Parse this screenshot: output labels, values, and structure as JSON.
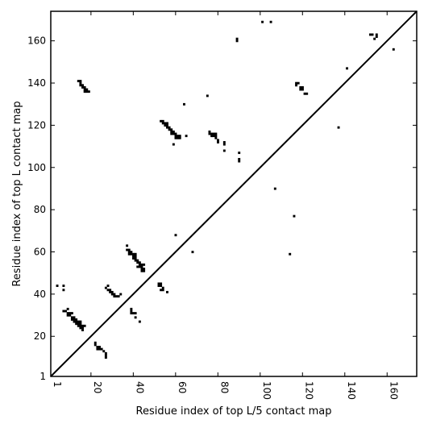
{
  "chart_data": {
    "type": "scatter",
    "xlabel": "Residue index of top L/5 contact map",
    "ylabel": "Residue index of top L contact map",
    "xlim": [
      1,
      174
    ],
    "ylim": [
      1,
      174
    ],
    "x_ticks": [
      1,
      20,
      40,
      60,
      80,
      100,
      120,
      140,
      160
    ],
    "y_ticks": [
      1,
      20,
      40,
      60,
      80,
      100,
      120,
      140,
      160
    ],
    "x_tick_labels": [
      "1",
      "20",
      "40",
      "60",
      "80",
      "100",
      "120",
      "140",
      "160"
    ],
    "y_tick_labels": [
      "1",
      "20",
      "40",
      "60",
      "80",
      "100",
      "120",
      "140",
      "160"
    ],
    "grid": false,
    "marker_color": "#000000",
    "series": [
      {
        "points": [
          [
            4,
            44
          ],
          [
            7,
            44
          ],
          [
            7,
            42
          ],
          [
            7,
            32
          ],
          [
            8,
            32
          ],
          [
            9,
            33
          ],
          [
            9,
            31
          ],
          [
            10,
            31
          ],
          [
            11,
            31
          ],
          [
            9,
            30
          ],
          [
            10,
            30
          ],
          [
            11,
            29
          ],
          [
            12,
            29
          ],
          [
            11,
            28
          ],
          [
            12,
            28
          ],
          [
            13,
            28
          ],
          [
            12,
            27
          ],
          [
            13,
            27
          ],
          [
            14,
            27
          ],
          [
            15,
            27
          ],
          [
            13,
            26
          ],
          [
            14,
            26
          ],
          [
            15,
            26
          ],
          [
            14,
            25
          ],
          [
            15,
            25
          ],
          [
            16,
            25
          ],
          [
            17,
            25
          ],
          [
            15,
            24
          ],
          [
            16,
            24
          ],
          [
            16,
            23
          ],
          [
            22,
            17
          ],
          [
            22,
            16
          ],
          [
            23,
            15
          ],
          [
            24,
            15
          ],
          [
            23,
            14
          ],
          [
            24,
            14
          ],
          [
            25,
            14
          ],
          [
            26,
            13
          ],
          [
            27,
            12
          ],
          [
            27,
            11
          ],
          [
            27,
            10
          ],
          [
            27,
            43
          ],
          [
            28,
            44
          ],
          [
            28,
            42
          ],
          [
            29,
            42
          ],
          [
            29,
            41
          ],
          [
            30,
            41
          ],
          [
            30,
            40
          ],
          [
            31,
            40
          ],
          [
            31,
            39
          ],
          [
            32,
            39
          ],
          [
            33,
            39
          ],
          [
            34,
            40
          ],
          [
            37,
            63
          ],
          [
            37,
            61
          ],
          [
            38,
            61
          ],
          [
            38,
            60
          ],
          [
            39,
            60
          ],
          [
            38,
            59
          ],
          [
            39,
            59
          ],
          [
            40,
            59
          ],
          [
            41,
            59
          ],
          [
            40,
            58
          ],
          [
            41,
            58
          ],
          [
            40,
            57
          ],
          [
            41,
            57
          ],
          [
            41,
            56
          ],
          [
            42,
            56
          ],
          [
            42,
            55
          ],
          [
            43,
            55
          ],
          [
            43,
            54
          ],
          [
            44,
            54
          ],
          [
            45,
            54
          ],
          [
            42,
            53
          ],
          [
            43,
            53
          ],
          [
            44,
            53
          ],
          [
            44,
            52
          ],
          [
            45,
            52
          ],
          [
            44,
            51
          ],
          [
            45,
            51
          ],
          [
            39,
            33
          ],
          [
            39,
            32
          ],
          [
            39,
            31
          ],
          [
            40,
            31
          ],
          [
            41,
            31
          ],
          [
            41,
            29
          ],
          [
            43,
            27
          ],
          [
            52,
            45
          ],
          [
            53,
            45
          ],
          [
            52,
            44
          ],
          [
            53,
            44
          ],
          [
            54,
            43
          ],
          [
            54,
            42
          ],
          [
            53,
            42
          ],
          [
            56,
            41
          ],
          [
            53,
            122
          ],
          [
            54,
            122
          ],
          [
            54,
            121
          ],
          [
            55,
            121
          ],
          [
            56,
            121
          ],
          [
            55,
            120
          ],
          [
            56,
            120
          ],
          [
            56,
            119
          ],
          [
            57,
            119
          ],
          [
            57,
            118
          ],
          [
            58,
            118
          ],
          [
            58,
            117
          ],
          [
            59,
            117
          ],
          [
            58,
            116
          ],
          [
            59,
            116
          ],
          [
            60,
            116
          ],
          [
            60,
            115
          ],
          [
            61,
            115
          ],
          [
            62,
            115
          ],
          [
            60,
            114
          ],
          [
            61,
            114
          ],
          [
            62,
            114
          ],
          [
            59,
            111
          ],
          [
            65,
            115
          ],
          [
            14,
            141
          ],
          [
            15,
            141
          ],
          [
            15,
            140
          ],
          [
            15,
            139
          ],
          [
            16,
            139
          ],
          [
            16,
            138
          ],
          [
            17,
            138
          ],
          [
            17,
            137
          ],
          [
            18,
            137
          ],
          [
            17,
            136
          ],
          [
            18,
            136
          ],
          [
            19,
            136
          ],
          [
            64,
            130
          ],
          [
            60,
            68
          ],
          [
            68,
            60
          ],
          [
            75,
            134
          ],
          [
            76,
            117
          ],
          [
            76,
            116
          ],
          [
            77,
            116
          ],
          [
            78,
            116
          ],
          [
            79,
            116
          ],
          [
            77,
            115
          ],
          [
            78,
            115
          ],
          [
            79,
            115
          ],
          [
            79,
            114
          ],
          [
            80,
            113
          ],
          [
            80,
            112
          ],
          [
            83,
            112
          ],
          [
            83,
            111
          ],
          [
            83,
            108
          ],
          [
            90,
            107
          ],
          [
            90,
            104
          ],
          [
            90,
            103
          ],
          [
            89,
            161
          ],
          [
            89,
            160
          ],
          [
            101,
            169
          ],
          [
            105,
            169
          ],
          [
            107,
            90
          ],
          [
            114,
            59
          ],
          [
            116,
            77
          ],
          [
            117,
            140
          ],
          [
            118,
            140
          ],
          [
            117,
            139
          ],
          [
            119,
            138
          ],
          [
            120,
            138
          ],
          [
            119,
            137
          ],
          [
            120,
            137
          ],
          [
            121,
            135
          ],
          [
            122,
            135
          ],
          [
            137,
            119
          ],
          [
            141,
            147
          ],
          [
            152,
            163
          ],
          [
            153,
            163
          ],
          [
            155,
            163
          ],
          [
            155,
            162
          ],
          [
            154,
            161
          ],
          [
            163,
            156
          ]
        ]
      }
    ],
    "reference_line": {
      "from": [
        1,
        1
      ],
      "to": [
        174,
        174
      ]
    }
  }
}
